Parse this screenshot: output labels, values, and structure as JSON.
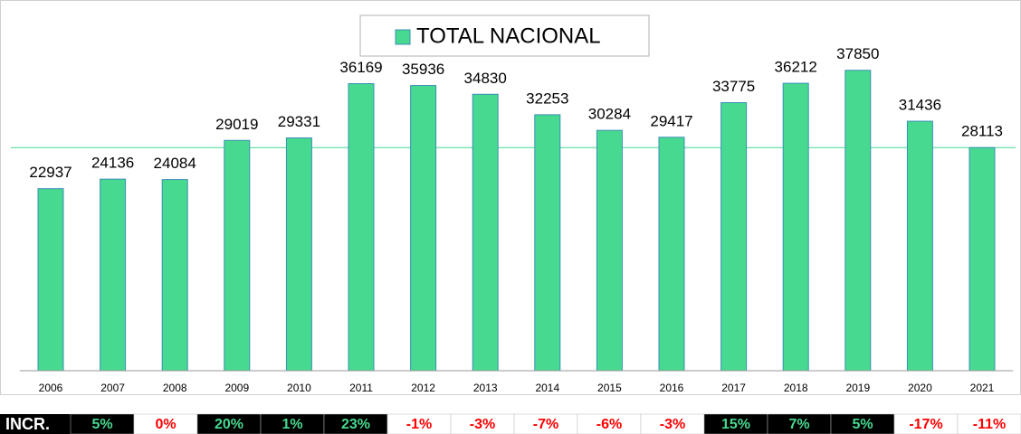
{
  "chart_data": {
    "type": "bar",
    "legend": "TOTAL NACIONAL",
    "categories": [
      "2006",
      "2007",
      "2008",
      "2009",
      "2010",
      "2011",
      "2012",
      "2013",
      "2014",
      "2015",
      "2016",
      "2017",
      "2018",
      "2019",
      "2020",
      "2021"
    ],
    "values": [
      22937,
      24136,
      24084,
      29019,
      29331,
      36169,
      35936,
      34830,
      32253,
      30284,
      29417,
      33775,
      36212,
      37850,
      31436,
      28113
    ],
    "color": "#47d98f",
    "edge_color": "#3a8fb7",
    "ylim": [
      0,
      45000
    ],
    "increments": {
      "label": "INCR.",
      "values": [
        5,
        0,
        20,
        1,
        23,
        -1,
        -3,
        -7,
        -6,
        -3,
        15,
        7,
        5,
        -17,
        -11
      ],
      "value_labels": [
        "5%",
        "0%",
        "20%",
        "1%",
        "23%",
        "-1%",
        "-3%",
        "-7%",
        "-6%",
        "-3%",
        "15%",
        "7%",
        "5%",
        "-17%",
        "-11%"
      ],
      "positive_color": "#47d98f",
      "negative_color": "#ff0000"
    }
  }
}
